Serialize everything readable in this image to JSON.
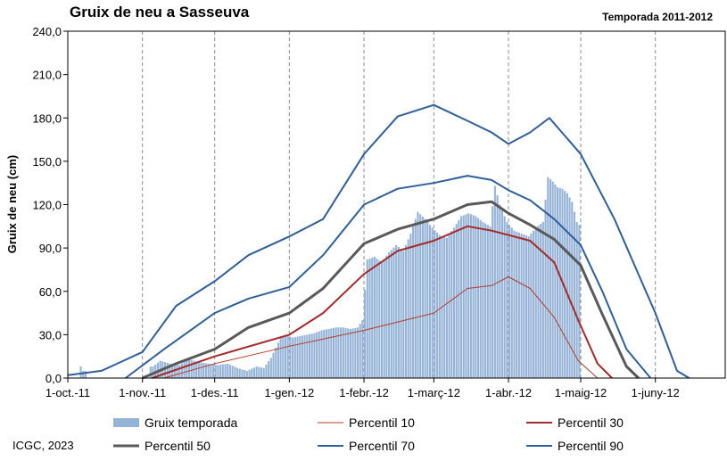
{
  "chart_data": {
    "type": "area",
    "title": "Gruix de neu a Sasseuva",
    "subtitle": "Temporada 2011-2012",
    "ylabel": "Gruix de neu (cm)",
    "xlabel": "",
    "ylim": [
      0,
      240
    ],
    "xlim": [
      "2011-10-01",
      "2012-06-30"
    ],
    "y_ticks": [
      "0,0",
      "30,0",
      "60,0",
      "90,0",
      "120,0",
      "150,0",
      "180,0",
      "210,0",
      "240,0"
    ],
    "x_ticks": [
      {
        "date": "2011-10-01",
        "label": "1-oct.-11"
      },
      {
        "date": "2011-11-01",
        "label": "1-nov.-11"
      },
      {
        "date": "2011-12-01",
        "label": "1-des.-11"
      },
      {
        "date": "2012-01-01",
        "label": "1-gen.-12"
      },
      {
        "date": "2012-02-01",
        "label": "1-febr.-12"
      },
      {
        "date": "2012-03-01",
        "label": "1-març-12"
      },
      {
        "date": "2012-04-01",
        "label": "1-abr.-12"
      },
      {
        "date": "2012-05-01",
        "label": "1-maig-12"
      },
      {
        "date": "2012-06-01",
        "label": "1-juny-12"
      }
    ],
    "grid": "vertical dashed",
    "legend": "bottom",
    "bars": {
      "name": "Gruix temporada",
      "color": "#95b3d7",
      "points": [
        [
          "2011-10-06",
          8
        ],
        [
          "2011-10-07",
          5
        ],
        [
          "2011-11-05",
          8
        ],
        [
          "2011-11-08",
          12
        ],
        [
          "2011-11-12",
          10
        ],
        [
          "2011-11-16",
          9
        ],
        [
          "2011-11-20",
          13
        ],
        [
          "2011-11-24",
          11
        ],
        [
          "2011-11-28",
          10
        ],
        [
          "2011-12-02",
          9
        ],
        [
          "2011-12-06",
          10
        ],
        [
          "2011-12-10",
          7
        ],
        [
          "2011-12-14",
          5
        ],
        [
          "2011-12-18",
          8
        ],
        [
          "2011-12-21",
          7
        ],
        [
          "2011-12-24",
          14
        ],
        [
          "2011-12-26",
          21
        ],
        [
          "2011-12-28",
          28
        ],
        [
          "2011-12-30",
          30
        ],
        [
          "2012-01-02",
          28
        ],
        [
          "2012-01-05",
          29
        ],
        [
          "2012-01-08",
          30
        ],
        [
          "2012-01-11",
          31
        ],
        [
          "2012-01-14",
          33
        ],
        [
          "2012-01-17",
          34
        ],
        [
          "2012-01-20",
          35
        ],
        [
          "2012-01-23",
          35
        ],
        [
          "2012-01-26",
          34
        ],
        [
          "2012-01-29",
          35
        ],
        [
          "2012-01-31",
          40
        ],
        [
          "2012-02-02",
          82
        ],
        [
          "2012-02-05",
          84
        ],
        [
          "2012-02-08",
          80
        ],
        [
          "2012-02-11",
          87
        ],
        [
          "2012-02-14",
          92
        ],
        [
          "2012-02-17",
          88
        ],
        [
          "2012-02-20",
          100
        ],
        [
          "2012-02-23",
          115
        ],
        [
          "2012-02-26",
          110
        ],
        [
          "2012-02-29",
          104
        ],
        [
          "2012-03-03",
          99
        ],
        [
          "2012-03-06",
          97
        ],
        [
          "2012-03-09",
          104
        ],
        [
          "2012-03-12",
          112
        ],
        [
          "2012-03-15",
          114
        ],
        [
          "2012-03-18",
          112
        ],
        [
          "2012-03-21",
          108
        ],
        [
          "2012-03-24",
          105
        ],
        [
          "2012-03-26",
          133
        ],
        [
          "2012-03-28",
          120
        ],
        [
          "2012-03-31",
          108
        ],
        [
          "2012-04-03",
          102
        ],
        [
          "2012-04-06",
          100
        ],
        [
          "2012-04-09",
          98
        ],
        [
          "2012-04-12",
          104
        ],
        [
          "2012-04-15",
          108
        ],
        [
          "2012-04-17",
          139
        ],
        [
          "2012-04-19",
          136
        ],
        [
          "2012-04-21",
          132
        ],
        [
          "2012-04-23",
          131
        ],
        [
          "2012-04-25",
          128
        ],
        [
          "2012-04-27",
          122
        ],
        [
          "2012-04-29",
          108
        ],
        [
          "2012-04-30",
          106
        ]
      ]
    },
    "series": [
      {
        "name": "Percentil 10",
        "color": "#b33b2e",
        "width": 1,
        "x": [
          "2011-11-10",
          "2011-12-01",
          "2012-01-01",
          "2012-02-01",
          "2012-03-01",
          "2012-03-15",
          "2012-03-25",
          "2012-04-01",
          "2012-04-10",
          "2012-04-20",
          "2012-04-30",
          "2012-05-08"
        ],
        "y": [
          0,
          10,
          22,
          33,
          45,
          62,
          64,
          70,
          62,
          42,
          12,
          0
        ]
      },
      {
        "name": "Percentil 30",
        "color": "#a52a2a",
        "width": 2,
        "x": [
          "2011-11-05",
          "2011-12-01",
          "2012-01-01",
          "2012-01-15",
          "2012-02-01",
          "2012-02-15",
          "2012-03-01",
          "2012-03-15",
          "2012-03-25",
          "2012-04-10",
          "2012-04-20",
          "2012-04-30",
          "2012-05-08",
          "2012-05-14"
        ],
        "y": [
          0,
          15,
          30,
          45,
          72,
          88,
          95,
          105,
          102,
          95,
          80,
          40,
          10,
          0
        ]
      },
      {
        "name": "Percentil 50",
        "color": "#595959",
        "width": 3,
        "x": [
          "2011-11-01",
          "2011-11-15",
          "2011-12-01",
          "2011-12-15",
          "2012-01-01",
          "2012-01-15",
          "2012-02-01",
          "2012-02-15",
          "2012-03-01",
          "2012-03-15",
          "2012-03-25",
          "2012-04-01",
          "2012-04-10",
          "2012-04-20",
          "2012-05-01",
          "2012-05-10",
          "2012-05-20",
          "2012-05-25"
        ],
        "y": [
          0,
          10,
          20,
          35,
          45,
          62,
          93,
          103,
          110,
          120,
          122,
          114,
          106,
          96,
          78,
          44,
          8,
          0
        ]
      },
      {
        "name": "Percentil 70",
        "color": "#2e5f9b",
        "width": 2,
        "x": [
          "2011-10-25",
          "2011-11-10",
          "2011-12-01",
          "2011-12-15",
          "2012-01-01",
          "2012-01-15",
          "2012-02-01",
          "2012-02-15",
          "2012-03-01",
          "2012-03-15",
          "2012-03-25",
          "2012-04-01",
          "2012-04-10",
          "2012-04-20",
          "2012-05-01",
          "2012-05-10",
          "2012-05-20",
          "2012-05-30"
        ],
        "y": [
          0,
          20,
          45,
          55,
          63,
          85,
          120,
          131,
          135,
          140,
          137,
          130,
          123,
          110,
          92,
          60,
          20,
          0
        ]
      },
      {
        "name": "Percentil 90",
        "color": "#2e5f9b",
        "width": 2,
        "x": [
          "2011-10-01",
          "2011-10-15",
          "2011-11-01",
          "2011-11-15",
          "2011-12-01",
          "2011-12-15",
          "2012-01-01",
          "2012-01-15",
          "2012-02-01",
          "2012-02-15",
          "2012-03-01",
          "2012-03-15",
          "2012-03-25",
          "2012-04-01",
          "2012-04-10",
          "2012-04-18",
          "2012-05-01",
          "2012-05-15",
          "2012-06-01",
          "2012-06-10",
          "2012-06-15"
        ],
        "y": [
          2,
          5,
          18,
          50,
          67,
          85,
          98,
          110,
          155,
          181,
          189,
          178,
          170,
          162,
          170,
          180,
          155,
          110,
          45,
          5,
          0
        ]
      }
    ]
  },
  "legend_items": [
    "Gruix temporada",
    "Percentil 10",
    "Percentil 30",
    "Percentil 50",
    "Percentil 70",
    "Percentil 90"
  ],
  "credit": "ICGC, 2023"
}
